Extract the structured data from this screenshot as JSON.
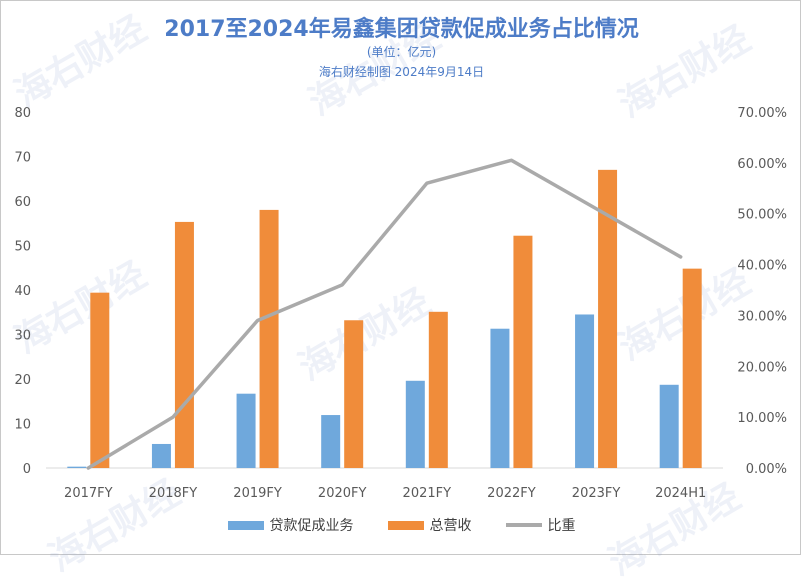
{
  "title": "2017至2024年易鑫集团贷款促成业务占比情况",
  "subtitle": "(单位：亿元)",
  "source": "海右财经制图 2024年9月14日",
  "watermark": "海右财经",
  "colors": {
    "loan": "#6fa8dc",
    "revenue": "#f08c3a",
    "ratio": "#aaaaaa",
    "title": "#4d7cc7"
  },
  "chart_data": {
    "type": "bar+line",
    "categories": [
      "2017FY",
      "2018FY",
      "2019FY",
      "2020FY",
      "2021FY",
      "2022FY",
      "2023FY",
      "2024H1"
    ],
    "series": [
      {
        "name": "贷款促成业务",
        "type": "bar",
        "axis": "left",
        "values": [
          0.3,
          5.4,
          16.7,
          11.9,
          19.6,
          31.3,
          34.5,
          18.7
        ]
      },
      {
        "name": "总营收",
        "type": "bar",
        "axis": "left",
        "values": [
          39.4,
          55.3,
          58.0,
          33.2,
          35.1,
          52.2,
          67.0,
          44.8
        ]
      },
      {
        "name": "比重",
        "type": "line",
        "axis": "right",
        "values": [
          0.0,
          0.1,
          0.29,
          0.36,
          0.56,
          0.605,
          0.51,
          0.415
        ]
      }
    ],
    "y_left": {
      "min": 0,
      "max": 80,
      "ticks": [
        "0",
        "10",
        "20",
        "30",
        "40",
        "50",
        "60",
        "70",
        "80"
      ]
    },
    "y_right": {
      "min": 0,
      "max": 0.7,
      "ticks": [
        "0.00%",
        "10.00%",
        "20.00%",
        "30.00%",
        "40.00%",
        "50.00%",
        "60.00%",
        "70.00%"
      ]
    },
    "legend": [
      "贷款促成业务",
      "总营收",
      "比重"
    ],
    "legend_position": "bottom",
    "grid": false
  }
}
